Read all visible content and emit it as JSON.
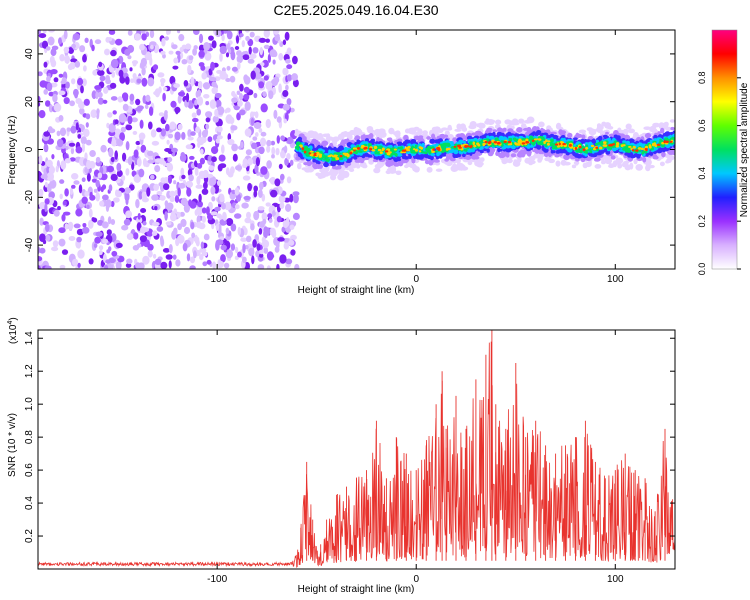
{
  "title": "C2E5.2025.049.16.04.E30",
  "chart_data": [
    {
      "type": "heatmap",
      "xlabel": "Height of straight line (km)",
      "ylabel": "Frequency (Hz)",
      "xlim": [
        -190,
        130
      ],
      "ylim": [
        -50,
        50
      ],
      "x_ticks": [
        {
          "value": -100,
          "label": "-100"
        },
        {
          "value": 0,
          "label": "0"
        },
        {
          "value": 100,
          "label": "100"
        }
      ],
      "y_ticks": [
        {
          "value": -40,
          "label": "-40"
        },
        {
          "value": -20,
          "label": "-20"
        },
        {
          "value": 0,
          "label": "0"
        },
        {
          "value": 20,
          "label": "20"
        },
        {
          "value": 40,
          "label": "40"
        }
      ],
      "noise_region_x": [
        -190,
        -60
      ],
      "signal_start_x": -60,
      "signal_track": [
        [
          -60,
          2
        ],
        [
          -55,
          -1
        ],
        [
          -50,
          -2
        ],
        [
          -45,
          -3
        ],
        [
          -40,
          -3
        ],
        [
          -35,
          -2
        ],
        [
          -30,
          0
        ],
        [
          -25,
          1
        ],
        [
          -20,
          0
        ],
        [
          -15,
          -1
        ],
        [
          -10,
          -1
        ],
        [
          -5,
          0
        ],
        [
          0,
          0
        ],
        [
          5,
          0
        ],
        [
          10,
          0
        ],
        [
          15,
          1
        ],
        [
          20,
          1
        ],
        [
          25,
          1
        ],
        [
          30,
          2
        ],
        [
          35,
          3
        ],
        [
          40,
          3
        ],
        [
          45,
          3
        ],
        [
          50,
          3
        ],
        [
          55,
          3
        ],
        [
          60,
          4
        ],
        [
          65,
          3
        ],
        [
          70,
          2
        ],
        [
          75,
          2
        ],
        [
          80,
          1
        ],
        [
          85,
          0
        ],
        [
          90,
          1
        ],
        [
          95,
          2
        ],
        [
          100,
          2
        ],
        [
          105,
          1
        ],
        [
          110,
          0
        ],
        [
          115,
          0
        ],
        [
          120,
          2
        ],
        [
          125,
          3
        ],
        [
          130,
          4
        ]
      ],
      "colorbar": {
        "label": "Normalized spectral amplitude",
        "range": [
          0,
          1
        ],
        "ticks": [
          {
            "value": 0.0,
            "label": "0.0"
          },
          {
            "value": 0.2,
            "label": "0.2"
          },
          {
            "value": 0.4,
            "label": "0.4"
          },
          {
            "value": 0.6,
            "label": "0.6"
          },
          {
            "value": 0.8,
            "label": "0.8"
          }
        ],
        "colors": [
          "#ffffff",
          "#d8b0ff",
          "#9a30ff",
          "#2020ff",
          "#00c8ff",
          "#00e060",
          "#60ff00",
          "#ffff00",
          "#ff9000",
          "#ff0000",
          "#ff0080"
        ]
      }
    },
    {
      "type": "line",
      "xlabel": "Height of straight line (km)",
      "ylabel": "SNR (10 * v/v)",
      "y_multiplier": "(x10",
      "y_multiplier_exp": "4",
      "y_multiplier_close": ")",
      "xlim": [
        -190,
        130
      ],
      "ylim": [
        0,
        1.45
      ],
      "color": "#e8332e",
      "x_ticks": [
        {
          "value": -100,
          "label": "-100"
        },
        {
          "value": 0,
          "label": "0"
        },
        {
          "value": 100,
          "label": "100"
        }
      ],
      "y_ticks": [
        {
          "value": 0.2,
          "label": "0.2"
        },
        {
          "value": 0.4,
          "label": "0.4"
        },
        {
          "value": 0.6,
          "label": "0.6"
        },
        {
          "value": 0.8,
          "label": "0.8"
        },
        {
          "value": 1.0,
          "label": "1.0"
        },
        {
          "value": 1.2,
          "label": "1.2"
        },
        {
          "value": 1.4,
          "label": "1.4"
        }
      ],
      "series": [
        {
          "x": [
            -190,
            -170,
            -150,
            -130,
            -110,
            -90,
            -70,
            -62,
            -58,
            -55,
            -52,
            -48,
            -45,
            -40,
            -35,
            -30,
            -25,
            -20,
            -15,
            -10,
            -5,
            0,
            5,
            10,
            13,
            15,
            20,
            25,
            30,
            35,
            38,
            40,
            45,
            50,
            55,
            60,
            65,
            70,
            75,
            80,
            85,
            90,
            95,
            100,
            105,
            110,
            115,
            120,
            125,
            130
          ],
          "y": [
            0.03,
            0.03,
            0.03,
            0.03,
            0.03,
            0.03,
            0.03,
            0.04,
            0.25,
            0.65,
            0.3,
            0.15,
            0.3,
            0.45,
            0.5,
            0.55,
            0.6,
            0.9,
            0.55,
            0.8,
            0.7,
            0.6,
            0.75,
            1.0,
            1.2,
            0.85,
            1.05,
            0.85,
            1.15,
            1.3,
            1.47,
            1.0,
            0.85,
            1.25,
            0.8,
            0.9,
            0.75,
            0.7,
            0.75,
            0.8,
            0.9,
            0.65,
            0.55,
            0.6,
            0.7,
            0.6,
            0.55,
            0.35,
            0.85,
            0.4
          ]
        }
      ]
    }
  ]
}
